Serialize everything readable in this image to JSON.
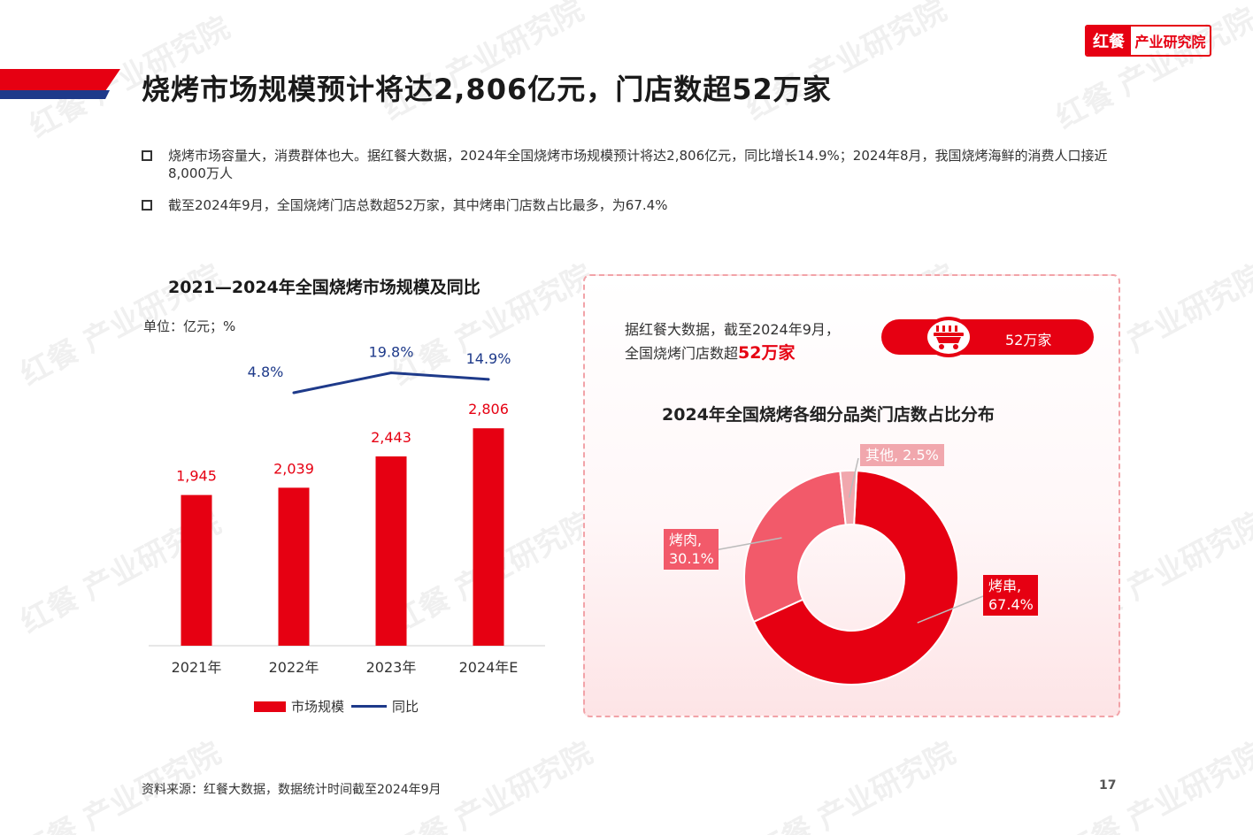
{
  "title": "烧烤市场规模预计将达2,806亿元，门店数超52万家",
  "logo": {
    "left": "红餐",
    "right": "产业研究院"
  },
  "bullets": [
    "烧烤市场容量大，消费群体也大。据红餐大数据，2024年全国烧烤市场规模预计将达2,806亿元，同比增长14.9%；2024年8月，我国烧烤海鲜的消费人口接近8,000万人",
    "截至2024年9月，全国烧烤门店总数超52万家，其中烤串门店数占比最多，为67.4%"
  ],
  "bar_chart_title": "2021—2024年全国烧烤市场规模及同比",
  "unit": "单位：亿元；%",
  "legend": {
    "bar": "市场规模",
    "line": "同比"
  },
  "panel": {
    "text_line1": "据红餐大数据，截至2024年9月，",
    "text_line2_prefix": "全国烧烤门店数超",
    "text_highlight": "52万家",
    "pill_label": "52万家",
    "pie_title": "2024年全国烧烤各细分品类门店数占比分布"
  },
  "pie_labels": {
    "other": "其他, 2.5%",
    "meat": "烤肉, 30.1%",
    "skewer": "烤串, 67.4%"
  },
  "source": "资料来源：红餐大数据，数据统计时间截至2024年9月",
  "page_number": "17",
  "watermark": "红餐 产业研究院",
  "colors": {
    "accent": "#e60012",
    "line": "#1e3a8a",
    "meat": "#f25a6a",
    "other": "#f1a7ad"
  },
  "chart_data": [
    {
      "type": "bar",
      "title": "2021—2024年全国烧烤市场规模及同比",
      "categories": [
        "2021年",
        "2022年",
        "2023年",
        "2024年E"
      ],
      "series": [
        {
          "name": "市场规模",
          "type": "bar",
          "values": [
            1945,
            2039,
            2443,
            2806
          ],
          "labels": [
            "1,945",
            "2,039",
            "2,443",
            "2,806"
          ]
        },
        {
          "name": "同比",
          "type": "line",
          "values": [
            null,
            4.8,
            19.8,
            14.9
          ],
          "labels": [
            "",
            "4.8%",
            "19.8%",
            "14.9%"
          ]
        }
      ],
      "ylabel": "单位：亿元；%",
      "legend": "bottom"
    },
    {
      "type": "pie",
      "title": "2024年全国烧烤各细分品类门店数占比分布",
      "donut": true,
      "slices": [
        {
          "name": "烤串",
          "value": 67.4
        },
        {
          "name": "烤肉",
          "value": 30.1
        },
        {
          "name": "其他",
          "value": 2.5
        }
      ]
    }
  ]
}
